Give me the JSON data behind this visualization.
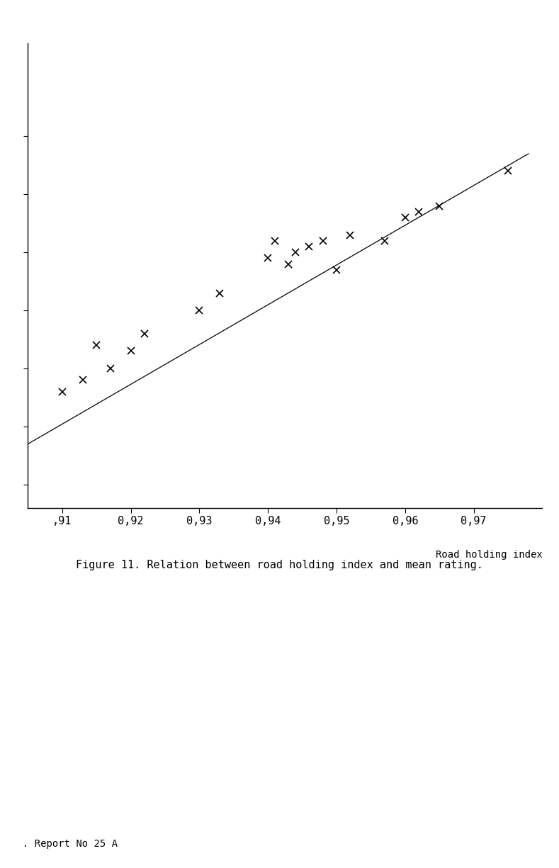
{
  "x_data": [
    0.91,
    0.913,
    0.915,
    0.917,
    0.92,
    0.922,
    0.93,
    0.933,
    0.94,
    0.941,
    0.943,
    0.944,
    0.946,
    0.948,
    0.95,
    0.952,
    0.957,
    0.96,
    0.962,
    0.965,
    0.975
  ],
  "y_data": [
    5.5,
    5.6,
    5.9,
    5.7,
    5.85,
    6.0,
    6.2,
    6.35,
    6.65,
    6.8,
    6.6,
    6.7,
    6.75,
    6.8,
    6.55,
    6.85,
    6.8,
    7.0,
    7.05,
    7.1,
    7.4
  ],
  "line_x": [
    0.905,
    0.978
  ],
  "line_y": [
    5.05,
    7.55
  ],
  "xlim": [
    0.905,
    0.98
  ],
  "ylim": [
    4.5,
    8.5
  ],
  "xticks": [
    0.91,
    0.92,
    0.93,
    0.94,
    0.95,
    0.96,
    0.97
  ],
  "xtick_labels": [
    ",91",
    "0,92",
    "0,93",
    "0,94",
    "0,95",
    "0,96",
    "0,97"
  ],
  "yticks": [
    4.7,
    5.2,
    5.7,
    6.2,
    6.7,
    7.2,
    7.7
  ],
  "xlabel": "Road holding index",
  "caption": "Figure 11. Relation between road holding index and mean rating.",
  "footer": ". Report No 25 A",
  "background_color": "#ffffff",
  "marker_color": "#000000",
  "line_color": "#000000"
}
